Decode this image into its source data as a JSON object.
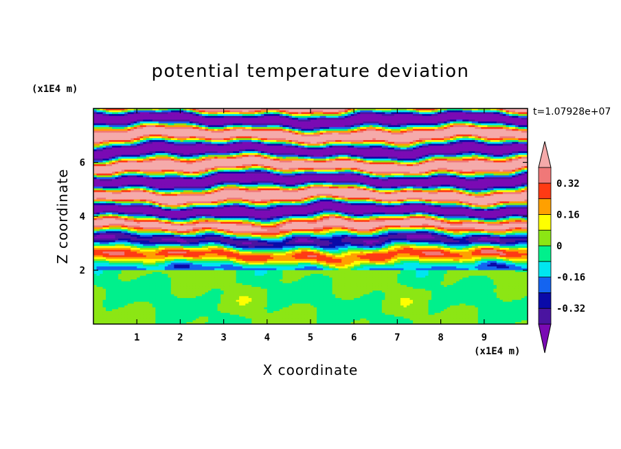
{
  "chart_data": {
    "type": "heatmap",
    "title": "potential temperature deviation",
    "xlabel": "X coordinate",
    "ylabel": "Z coordinate",
    "x_unit": "(x1E4 m)",
    "y_unit": "(x1E4 m)",
    "time_label": "t=1.07928e+07",
    "xlim": [
      0,
      10
    ],
    "ylim": [
      0,
      8
    ],
    "x_ticks": [
      "1",
      "2",
      "3",
      "4",
      "5",
      "6",
      "7",
      "8",
      "9"
    ],
    "y_ticks": [
      "2",
      "4",
      "6"
    ],
    "colorbar": {
      "labels": [
        "0.32",
        "0.16",
        "0",
        "-0.16",
        "-0.32"
      ],
      "label_values": [
        0.32,
        0.16,
        0,
        -0.16,
        -0.32
      ],
      "levels": [
        -0.4,
        -0.32,
        -0.24,
        -0.16,
        -0.08,
        0,
        0.08,
        0.16,
        0.24,
        0.32,
        0.4
      ],
      "colors": [
        "#7a0ab4",
        "#4a14a0",
        "#0a0aa8",
        "#1464f0",
        "#00e6f0",
        "#00f08c",
        "#8ce614",
        "#ffff00",
        "#ffa000",
        "#ff3a14",
        "#f07878",
        "#f5aaaa"
      ],
      "extend": "both"
    }
  }
}
